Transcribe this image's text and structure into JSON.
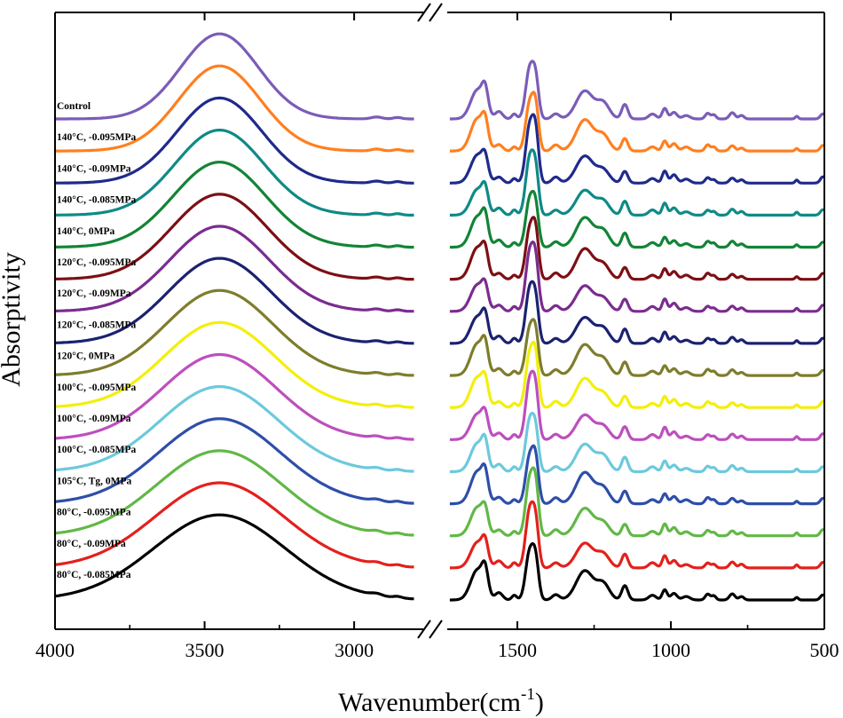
{
  "chart_data": {
    "type": "line",
    "title": "",
    "xlabel": "Wavenumber(cm",
    "xlabel_superscript": "-1",
    "xlabel_close": ")",
    "ylabel": "Absorptivity",
    "x_direction": "decreasing",
    "axis_break": true,
    "segments": [
      {
        "xlim": [
          4000,
          2760
        ],
        "ticks": [
          4000,
          3500,
          3000
        ]
      },
      {
        "xlim": [
          1740,
          500
        ],
        "ticks": [
          1500,
          1000,
          500
        ]
      }
    ],
    "tick_labels": [
      "4000",
      "3500",
      "3000",
      "1500",
      "1000",
      "500"
    ],
    "y_ticks_shown": false,
    "legend": "inline labels at left, stacked top to bottom",
    "series": [
      {
        "name": "Control",
        "color": "#7a5cb8"
      },
      {
        "name": "140°C, -0.095MPa",
        "color": "#ff7f1e"
      },
      {
        "name": "140°C, -0.09MPa",
        "color": "#1f2a8c"
      },
      {
        "name": "140°C, -0.085MPa",
        "color": "#0e8a86"
      },
      {
        "name": "140°C, 0MPa",
        "color": "#128436"
      },
      {
        "name": "120°C, -0.095MPa",
        "color": "#7d0f14"
      },
      {
        "name": "120°C, -0.09MPa",
        "color": "#7b2c8f"
      },
      {
        "name": "120°C, -0.085MPa",
        "color": "#1b2270"
      },
      {
        "name": "120°C, 0MPa",
        "color": "#7d7d2c"
      },
      {
        "name": "100°C, -0.095MPa",
        "color": "#f3ef0a"
      },
      {
        "name": "100°C, -0.09MPa",
        "color": "#bd4fbd"
      },
      {
        "name": "100°C, -0.085MPa",
        "color": "#6cc9dc"
      },
      {
        "name": "105°C, Tg, 0MPa",
        "color": "#2e4ea8"
      },
      {
        "name": "80°C, -0.095MPa",
        "color": "#61b846"
      },
      {
        "name": "80°C, -0.09MPa",
        "color": "#e3201c"
      },
      {
        "name": "80°C, -0.085MPa",
        "color": "#000000"
      }
    ],
    "peaks": {
      "broad_band": [
        3450
      ],
      "fingerprint": [
        1630,
        1605,
        1560,
        1510,
        1460,
        1440,
        1375,
        1280,
        1220,
        1150,
        1060,
        1020,
        990,
        950,
        880,
        860,
        800,
        590
      ]
    }
  }
}
